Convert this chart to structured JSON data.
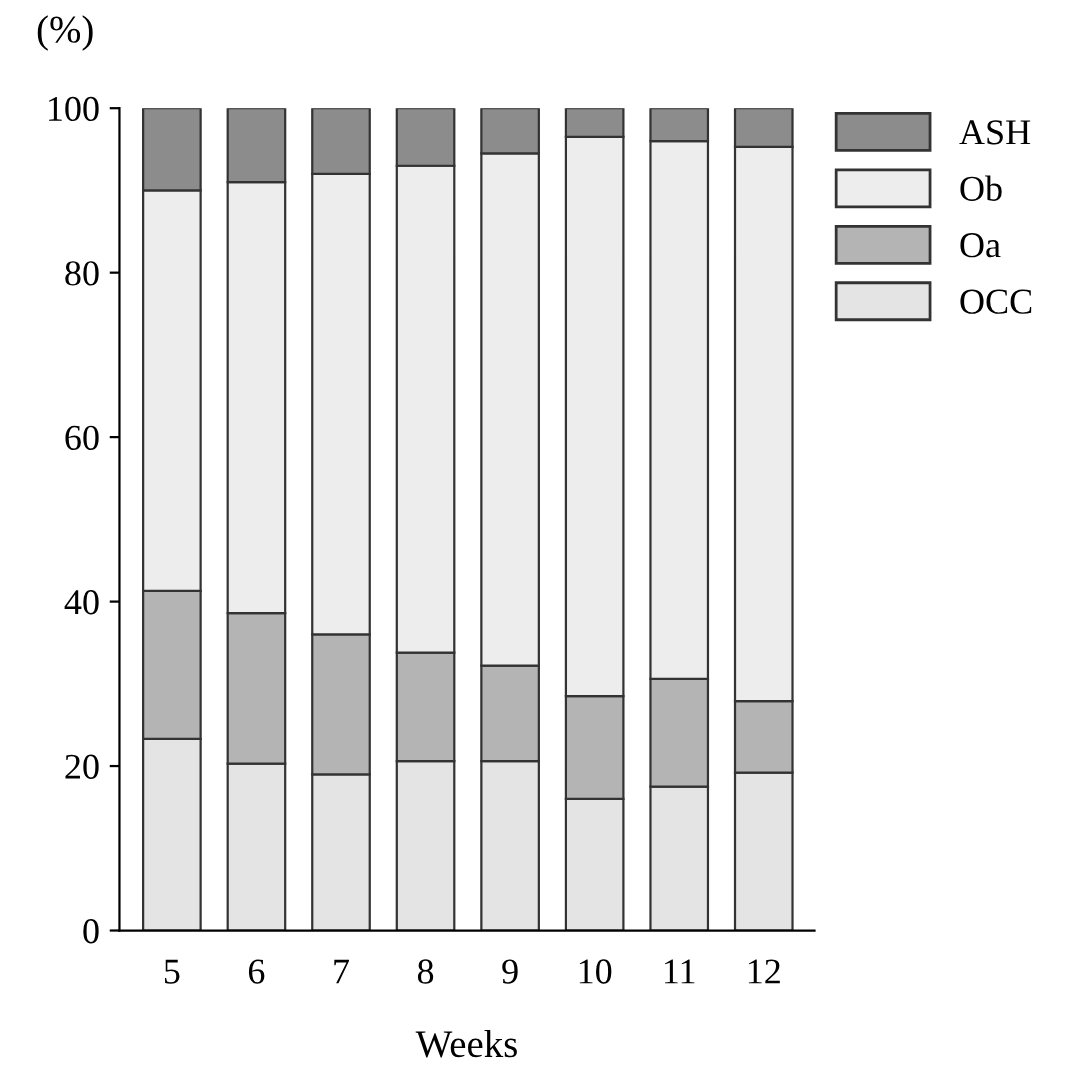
{
  "chart_data": {
    "type": "bar",
    "stacked": true,
    "xlabel": "Weeks",
    "ylabel": "(%)",
    "categories": [
      "5",
      "6",
      "7",
      "8",
      "9",
      "10",
      "11",
      "12"
    ],
    "series": [
      {
        "name": "OCC",
        "color": "#e4e4e4",
        "values": [
          23.3,
          20.3,
          19,
          20.6,
          20.6,
          16,
          17.5,
          19.2
        ]
      },
      {
        "name": "Oa",
        "color": "#b4b4b4",
        "values": [
          18,
          18.3,
          17,
          13.2,
          11.6,
          12.5,
          13.1,
          8.7
        ]
      },
      {
        "name": "Ob",
        "color": "#ededed",
        "values": [
          48.7,
          52.4,
          56,
          59.2,
          62.3,
          68,
          65.4,
          67.4
        ]
      },
      {
        "name": "ASH",
        "color": "#8c8c8c",
        "values": [
          10,
          9,
          8,
          7,
          5.5,
          3.5,
          4,
          4.7
        ]
      }
    ],
    "ylim": [
      0,
      100
    ],
    "yticks": [
      0,
      20,
      40,
      60,
      80,
      100
    ],
    "grid": false,
    "legend": "right"
  }
}
